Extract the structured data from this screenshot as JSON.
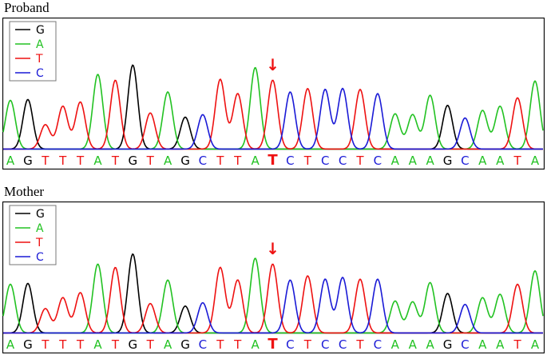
{
  "panels": [
    {
      "title": "Proband"
    },
    {
      "title": "Mother"
    }
  ],
  "chart_data": {
    "type": "line",
    "title": "",
    "xlabel": "",
    "ylabel": "",
    "legend": {
      "placement": "top-left",
      "entries": [
        {
          "base": "G",
          "color": "#000000"
        },
        {
          "base": "A",
          "color": "#22c222"
        },
        {
          "base": "T",
          "color": "#ee1111"
        },
        {
          "base": "C",
          "color": "#1a1ad6"
        }
      ]
    },
    "sequence": [
      "A",
      "G",
      "T",
      "T",
      "T",
      "A",
      "T",
      "G",
      "T",
      "A",
      "G",
      "C",
      "T",
      "T",
      "A",
      "T",
      "C",
      "T",
      "C",
      "C",
      "T",
      "C",
      "A",
      "A",
      "A",
      "G",
      "C",
      "A",
      "A",
      "T",
      "A"
    ],
    "highlight_index": 15,
    "marker": "↓",
    "peak_heights": [
      [
        0.58,
        0.59,
        0.29,
        0.51,
        0.56,
        0.89,
        0.82,
        1.0,
        0.43,
        0.68,
        0.38,
        0.41,
        0.83,
        0.66,
        0.97,
        0.82,
        0.68,
        0.72,
        0.71,
        0.72,
        0.71,
        0.66,
        0.42,
        0.41,
        0.64,
        0.52,
        0.37,
        0.46,
        0.51,
        0.61,
        0.81
      ],
      [
        0.58,
        0.59,
        0.29,
        0.42,
        0.48,
        0.82,
        0.78,
        0.94,
        0.35,
        0.63,
        0.32,
        0.36,
        0.78,
        0.63,
        0.89,
        0.82,
        0.63,
        0.68,
        0.64,
        0.66,
        0.64,
        0.64,
        0.38,
        0.37,
        0.6,
        0.47,
        0.34,
        0.42,
        0.46,
        0.58,
        0.74
      ]
    ]
  }
}
